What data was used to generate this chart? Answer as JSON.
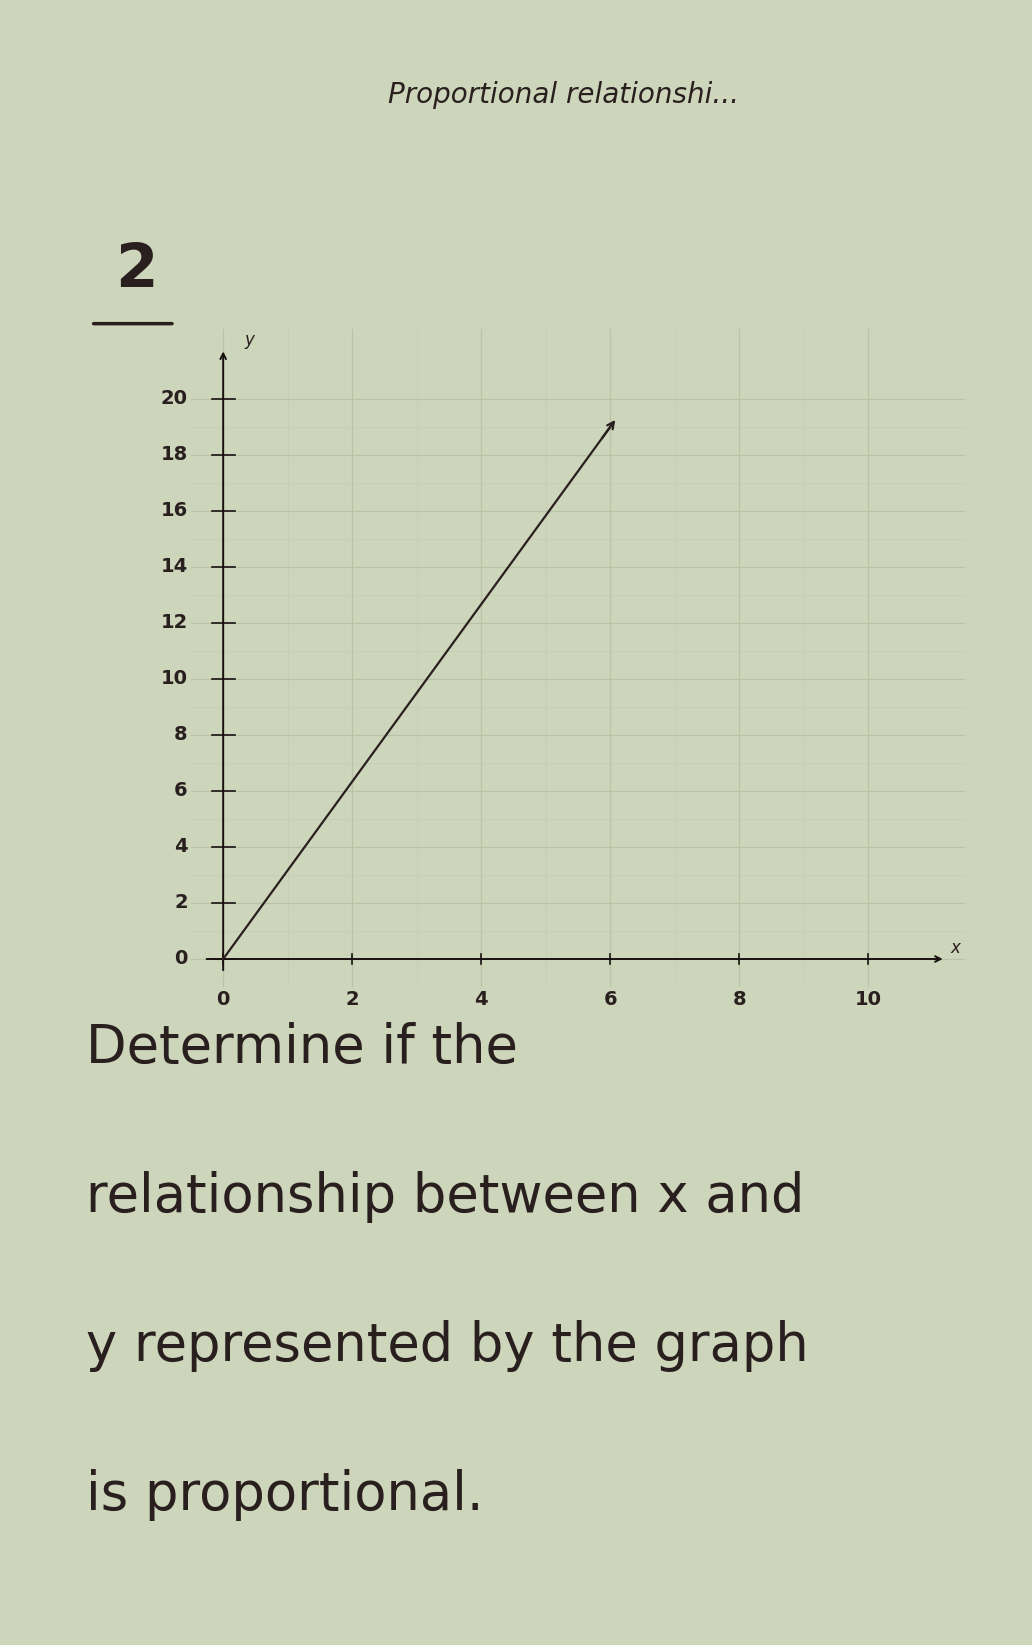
{
  "title": "Proportional relationshi...",
  "question_text": "Determine if the\nrelationship between x and\ny represented by the graph\nis proportional.",
  "line_x": [
    0,
    6
  ],
  "line_y": [
    0,
    19
  ],
  "x_ticks": [
    0,
    2,
    4,
    6,
    8,
    10
  ],
  "y_ticks": [
    0,
    2,
    4,
    6,
    8,
    10,
    12,
    14,
    16,
    18,
    20
  ],
  "xlim": [
    -0.5,
    11.5
  ],
  "ylim": [
    -1.0,
    22.5
  ],
  "x_label": "x",
  "y_label": "y",
  "header_bg_color": "#4d91a8",
  "bg_color": "#cdd5bb",
  "grid_color_major": "#b8c4a5",
  "grid_color_minor": "#c4cdb0",
  "line_color": "#2a1f1f",
  "axis_color": "#1a1010",
  "text_color": "#2a1f1f",
  "question_fontsize": 38,
  "title_fontsize": 20,
  "number_label": "2",
  "tick_fontsize": 14,
  "axis_label_fontsize": 14,
  "left_black_bar_width": 0.055
}
